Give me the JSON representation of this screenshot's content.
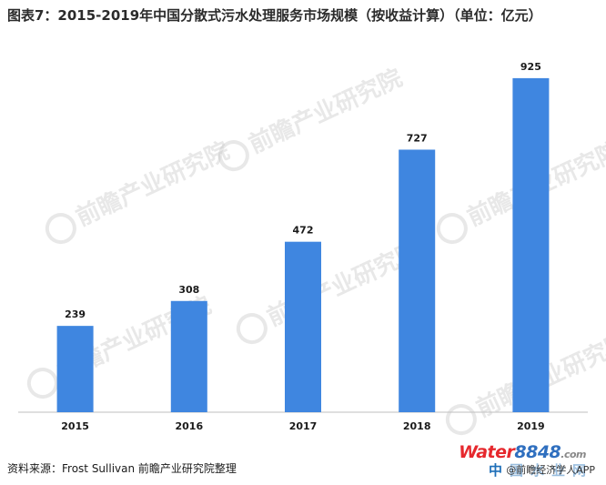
{
  "title": "图表7：2015-2019年中国分散式污水处理服务市场规模（按收益计算）（单位：亿元）",
  "source": "资料来源：Frost Sullivan 前瞻产业研究院整理",
  "watermark": "前瞻产业研究院",
  "logo": {
    "water": "Water",
    "number": "8848",
    "dot": ".com",
    "cn": "中国水业网",
    "overlay": "@前瞻经济学人APP"
  },
  "colors": {
    "bar": "#3f86e0",
    "axis": "#bfbfbf"
  },
  "chart_data": {
    "type": "bar",
    "categories": [
      "2015",
      "2016",
      "2017",
      "2018",
      "2019"
    ],
    "values": [
      239,
      308,
      472,
      727,
      925
    ],
    "title": "图表7：2015-2019年中国分散式污水处理服务市场规模（按收益计算）（单位：亿元）",
    "xlabel": "",
    "ylabel": "",
    "ylim": [
      0,
      960
    ],
    "grid": false,
    "legend": "none"
  }
}
